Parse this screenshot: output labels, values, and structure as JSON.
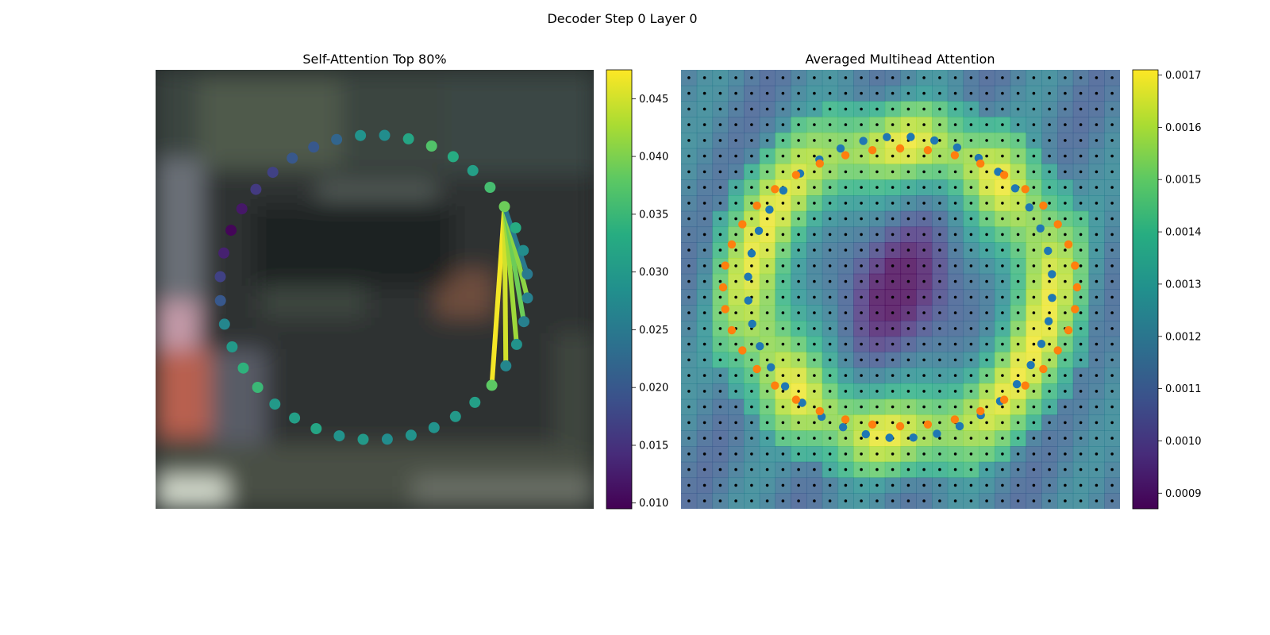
{
  "figure": {
    "suptitle": "Decoder Step 0 Layer 0"
  },
  "chart_data": [
    {
      "type": "scatter",
      "title": "Self-Attention Top 80%",
      "background": "blurred street scene image (dark)",
      "colormap": "viridis",
      "colorbar": {
        "ticks": [
          "0.010",
          "0.015",
          "0.020",
          "0.025",
          "0.030",
          "0.035",
          "0.040",
          "0.045"
        ],
        "range": [
          0.0095,
          0.0475
        ]
      },
      "query_point_index": 8,
      "points": {
        "count": 40,
        "shape": "ellipse",
        "center": [
          471,
          362
        ],
        "radii": [
          194,
          192
        ],
        "values": [
          0.038,
          0.027,
          0.029,
          0.026,
          0.026,
          0.025,
          0.028,
          0.033,
          0.039,
          0.036,
          0.031,
          0.033,
          0.037,
          0.032,
          0.028,
          0.029,
          0.022,
          0.02,
          0.02,
          0.017,
          0.016,
          0.012,
          0.01,
          0.013,
          0.017,
          0.02,
          0.027,
          0.03,
          0.034,
          0.035,
          0.03,
          0.031,
          0.032,
          0.029,
          0.03,
          0.028,
          0.029,
          0.029,
          0.03,
          0.031
        ]
      },
      "attention_edges": [
        {
          "to": 0,
          "weight": 0.047
        },
        {
          "to": 1,
          "weight": 0.045
        },
        {
          "to": 2,
          "weight": 0.042
        },
        {
          "to": 3,
          "weight": 0.039
        },
        {
          "to": 4,
          "weight": 0.041
        },
        {
          "to": 5,
          "weight": 0.025
        }
      ]
    },
    {
      "type": "heatmap",
      "title": "Averaged Multihead Attention",
      "colormap": "viridis",
      "colorbar": {
        "ticks": [
          "0.0009",
          "0.0010",
          "0.0011",
          "0.0012",
          "0.0013",
          "0.0014",
          "0.0015",
          "0.0016",
          "0.0017"
        ],
        "range": [
          0.00087,
          0.00171
        ]
      },
      "grid": {
        "rows": 28,
        "cols": 28,
        "reference_points": "black dots at every cell"
      },
      "overlay_series": [
        {
          "color": "#1f77b4",
          "count": 40,
          "shape": "ellipse"
        },
        {
          "color": "#ff7f0e",
          "count": 40,
          "shape": "ellipse"
        }
      ]
    }
  ],
  "colors": {
    "series_blue": "#1f77b4",
    "series_orange": "#ff7f0e",
    "axes_bg": "#2a2f30"
  }
}
